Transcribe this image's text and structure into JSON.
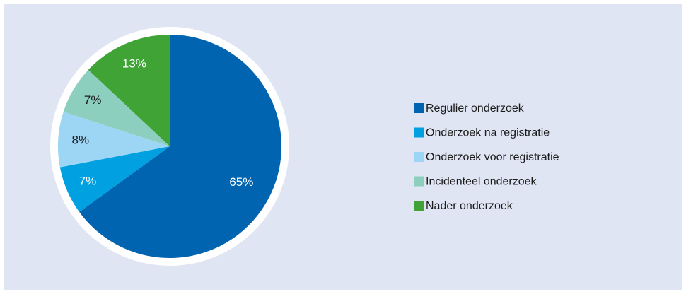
{
  "chart_data": {
    "type": "pie",
    "categories": [
      "Regulier onderzoek",
      "Onderzoek na registratie",
      "Onderzoek voor registratie",
      "Incidenteel onderzoek",
      "Nader onderzoek"
    ],
    "values": [
      65,
      7,
      8,
      7,
      13
    ],
    "value_labels": [
      "65%",
      "7%",
      "8%",
      "7%",
      "13%"
    ],
    "colors": [
      "#0064b0",
      "#00a0e1",
      "#9dd5f5",
      "#8dcfbf",
      "#3fa435"
    ],
    "legend": "right"
  }
}
